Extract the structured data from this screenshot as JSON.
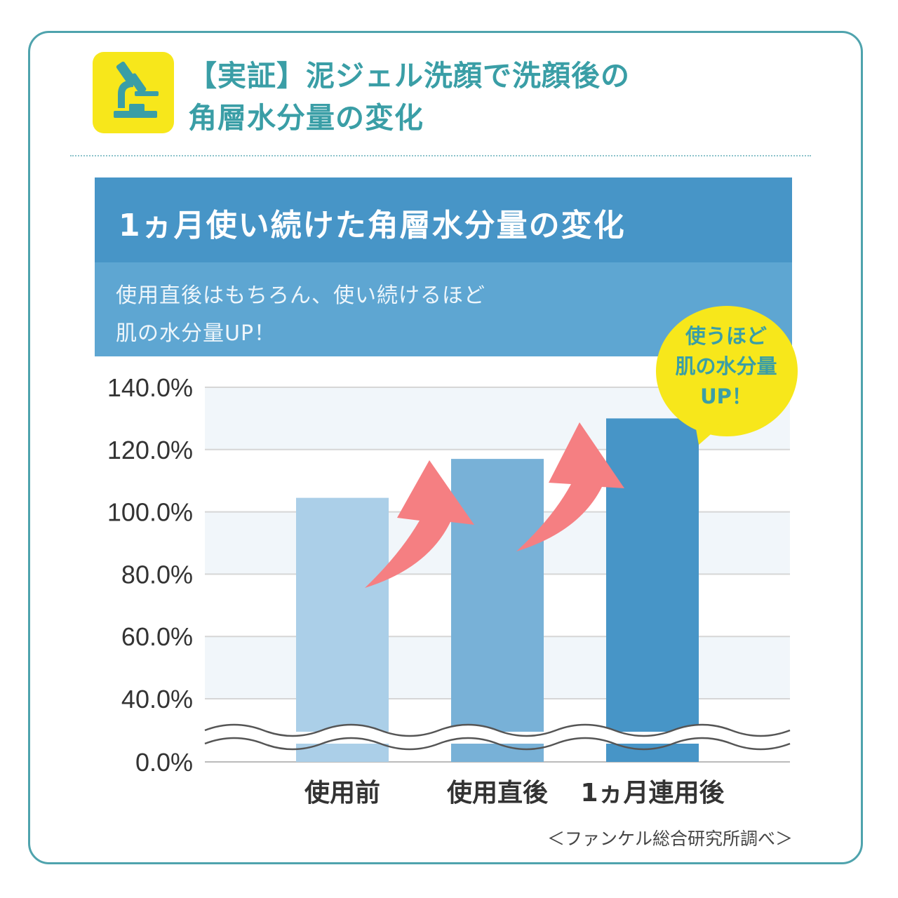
{
  "title": {
    "line1": "【実証】泥ジェル洗顔で洗顔後の",
    "line2": "角層水分量の変化"
  },
  "icon": "microscope-icon",
  "panel": {
    "heading": "1ヵ月使い続けた角層水分量の変化",
    "sub_line1": "使用直後はもちろん、使い続けるほど",
    "sub_line2": "肌の水分量UP！"
  },
  "bubble": {
    "line1": "使うほど",
    "line2": "肌の水分量",
    "line3": "UP！"
  },
  "source": "＜ファンケル総合研究所調べ＞",
  "colors": {
    "frame": "#4fa3ad",
    "badge": "#f7e71b",
    "heading_bg": "#4795c7",
    "sub_bg": "#5ea6d2",
    "arrow": "#f57f82",
    "bars": [
      "#abcfe8",
      "#78b1d7",
      "#4795c7"
    ]
  },
  "chart_data": {
    "type": "bar",
    "categories": [
      "使用前",
      "使用直後",
      "1ヵ月連用後"
    ],
    "values": [
      104.5,
      117,
      130
    ],
    "yticks": [
      "0.0%",
      "40.0%",
      "60.0%",
      "80.0%",
      "100.0%",
      "120.0%",
      "140.0%"
    ],
    "ylim": [
      0,
      140
    ],
    "axis_break": "between 0.0% and 40.0%",
    "grid": true
  }
}
